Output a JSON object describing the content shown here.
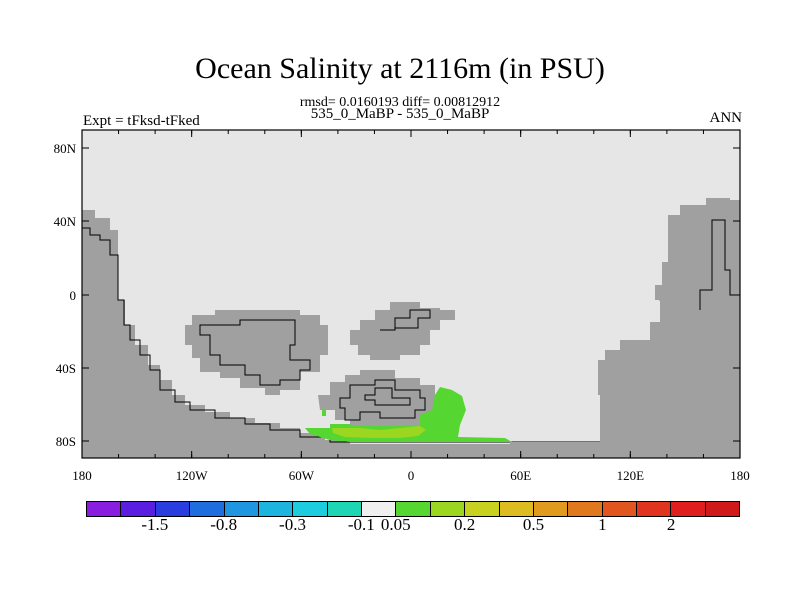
{
  "title": "Ocean Salinity at 2116m (in PSU)",
  "subtitle": "rmsd= 0.0160193 diff= 0.00812912",
  "left_label": "Expt = tFksd-tFked",
  "center_label": "535_0_MaBP - 535_0_MaBP",
  "right_label": "ANN",
  "x_ticks": [
    "180",
    "120W",
    "60W",
    "0",
    "60E",
    "120E",
    "180"
  ],
  "y_ticks": [
    "80N",
    "40N",
    "0",
    "40S",
    "80S"
  ],
  "colors": {
    "ocean_fill": "#e6e6e6",
    "land_fill": "#a0a0a0",
    "anomaly_green": "#55d630",
    "anomaly_lightgreen": "#9bd620"
  },
  "colorbar": {
    "colors": [
      "#8a1ee0",
      "#5a1ee0",
      "#2a3ee0",
      "#1e6ee0",
      "#1e96e0",
      "#1eb4e0",
      "#1ecce0",
      "#1ed6b4",
      "#f0f0f0",
      "#55d630",
      "#9bd620",
      "#c8d020",
      "#dcbc20",
      "#e09a1e",
      "#e0781e",
      "#e0561e",
      "#e0341e",
      "#e01e1e",
      "#d01a1a"
    ],
    "labels": [
      "-1.5",
      "-0.8",
      "-0.3",
      "-0.1",
      "0.05",
      "0.2",
      "0.5",
      "1",
      "2"
    ]
  }
}
